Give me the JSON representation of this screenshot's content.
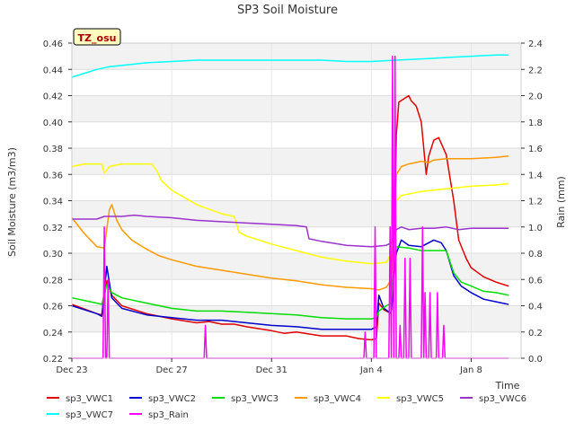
{
  "chart_data": {
    "type": "line",
    "title": "SP3 Soil Moisture",
    "badge": "TZ_osu",
    "xlabel": "Time",
    "ylabel": "Soil Moisture (m3/m3)",
    "y2label": "Rain (mm)",
    "x_range_days": [
      0,
      18.0
    ],
    "xticks": [
      {
        "day": 0,
        "label": "Dec 23"
      },
      {
        "day": 4,
        "label": "Dec 27"
      },
      {
        "day": 8,
        "label": "Dec 31"
      },
      {
        "day": 12,
        "label": "Jan 4"
      },
      {
        "day": 16,
        "label": "Jan 8"
      }
    ],
    "ylim": [
      0.22,
      0.46
    ],
    "yticks": [
      "0.22",
      "0.24",
      "0.26",
      "0.28",
      "0.30",
      "0.32",
      "0.34",
      "0.36",
      "0.38",
      "0.40",
      "0.42",
      "0.44",
      "0.46"
    ],
    "y2lim": [
      0.0,
      2.4
    ],
    "y2ticks": [
      "0.0",
      "0.2",
      "0.4",
      "0.6",
      "0.8",
      "1.0",
      "1.2",
      "1.4",
      "1.6",
      "1.8",
      "2.0",
      "2.2",
      "2.4"
    ],
    "grid": true,
    "legend_position": "bottom",
    "series": [
      {
        "name": "sp3_VWC1",
        "color": "#e00000",
        "axis": "left",
        "points": [
          [
            0.0,
            0.261
          ],
          [
            1.0,
            0.254
          ],
          [
            1.2,
            0.253
          ],
          [
            1.4,
            0.279
          ],
          [
            1.6,
            0.268
          ],
          [
            2.0,
            0.26
          ],
          [
            3.0,
            0.254
          ],
          [
            4.0,
            0.25
          ],
          [
            5.0,
            0.247
          ],
          [
            5.5,
            0.248
          ],
          [
            6.0,
            0.246
          ],
          [
            6.5,
            0.246
          ],
          [
            7.0,
            0.244
          ],
          [
            8.0,
            0.241
          ],
          [
            8.5,
            0.239
          ],
          [
            9.0,
            0.24
          ],
          [
            10.0,
            0.237
          ],
          [
            11.0,
            0.237
          ],
          [
            11.5,
            0.235
          ],
          [
            12.0,
            0.234
          ],
          [
            12.2,
            0.235
          ],
          [
            12.3,
            0.262
          ],
          [
            12.5,
            0.257
          ],
          [
            12.8,
            0.254
          ],
          [
            12.9,
            0.29
          ],
          [
            13.0,
            0.39
          ],
          [
            13.1,
            0.415
          ],
          [
            13.5,
            0.42
          ],
          [
            13.6,
            0.416
          ],
          [
            13.8,
            0.412
          ],
          [
            14.0,
            0.4
          ],
          [
            14.2,
            0.36
          ],
          [
            14.3,
            0.374
          ],
          [
            14.5,
            0.386
          ],
          [
            14.7,
            0.388
          ],
          [
            15.0,
            0.375
          ],
          [
            15.3,
            0.34
          ],
          [
            15.5,
            0.31
          ],
          [
            15.8,
            0.296
          ],
          [
            16.0,
            0.289
          ],
          [
            16.5,
            0.282
          ],
          [
            17.0,
            0.278
          ],
          [
            17.5,
            0.275
          ]
        ]
      },
      {
        "name": "sp3_VWC2",
        "color": "#0000cc",
        "axis": "left",
        "points": [
          [
            0.0,
            0.26
          ],
          [
            1.0,
            0.254
          ],
          [
            1.2,
            0.252
          ],
          [
            1.4,
            0.29
          ],
          [
            1.6,
            0.266
          ],
          [
            2.0,
            0.258
          ],
          [
            3.0,
            0.253
          ],
          [
            4.0,
            0.251
          ],
          [
            5.0,
            0.249
          ],
          [
            6.0,
            0.249
          ],
          [
            7.0,
            0.247
          ],
          [
            8.0,
            0.245
          ],
          [
            9.0,
            0.244
          ],
          [
            10.0,
            0.242
          ],
          [
            11.0,
            0.242
          ],
          [
            12.0,
            0.242
          ],
          [
            12.2,
            0.244
          ],
          [
            12.3,
            0.268
          ],
          [
            12.5,
            0.258
          ],
          [
            12.8,
            0.254
          ],
          [
            12.9,
            0.28
          ],
          [
            13.0,
            0.3
          ],
          [
            13.2,
            0.31
          ],
          [
            13.5,
            0.306
          ],
          [
            14.0,
            0.305
          ],
          [
            14.5,
            0.31
          ],
          [
            14.8,
            0.308
          ],
          [
            15.0,
            0.302
          ],
          [
            15.3,
            0.283
          ],
          [
            15.6,
            0.275
          ],
          [
            16.0,
            0.27
          ],
          [
            16.5,
            0.265
          ],
          [
            17.0,
            0.263
          ],
          [
            17.5,
            0.261
          ]
        ]
      },
      {
        "name": "sp3_VWC3",
        "color": "#00dd00",
        "axis": "left",
        "points": [
          [
            0.0,
            0.266
          ],
          [
            1.0,
            0.262
          ],
          [
            1.2,
            0.261
          ],
          [
            1.4,
            0.276
          ],
          [
            1.6,
            0.27
          ],
          [
            2.0,
            0.266
          ],
          [
            3.0,
            0.262
          ],
          [
            4.0,
            0.258
          ],
          [
            5.0,
            0.256
          ],
          [
            6.0,
            0.256
          ],
          [
            7.0,
            0.255
          ],
          [
            8.0,
            0.254
          ],
          [
            9.0,
            0.253
          ],
          [
            10.0,
            0.251
          ],
          [
            11.0,
            0.25
          ],
          [
            12.0,
            0.25
          ],
          [
            12.2,
            0.251
          ],
          [
            12.3,
            0.256
          ],
          [
            12.6,
            0.26
          ],
          [
            12.8,
            0.262
          ],
          [
            12.9,
            0.29
          ],
          [
            13.0,
            0.305
          ],
          [
            13.5,
            0.304
          ],
          [
            14.0,
            0.302
          ],
          [
            14.5,
            0.302
          ],
          [
            15.0,
            0.302
          ],
          [
            15.3,
            0.285
          ],
          [
            15.6,
            0.278
          ],
          [
            16.0,
            0.275
          ],
          [
            16.5,
            0.271
          ],
          [
            17.0,
            0.27
          ],
          [
            17.5,
            0.268
          ]
        ]
      },
      {
        "name": "sp3_VWC4",
        "color": "#ff9900",
        "axis": "left",
        "points": [
          [
            0.0,
            0.327
          ],
          [
            0.5,
            0.315
          ],
          [
            1.0,
            0.305
          ],
          [
            1.3,
            0.304
          ],
          [
            1.5,
            0.333
          ],
          [
            1.6,
            0.337
          ],
          [
            1.8,
            0.325
          ],
          [
            2.0,
            0.318
          ],
          [
            2.4,
            0.31
          ],
          [
            3.0,
            0.303
          ],
          [
            3.5,
            0.298
          ],
          [
            4.0,
            0.295
          ],
          [
            5.0,
            0.29
          ],
          [
            6.0,
            0.287
          ],
          [
            7.0,
            0.284
          ],
          [
            8.0,
            0.281
          ],
          [
            9.0,
            0.279
          ],
          [
            10.0,
            0.276
          ],
          [
            11.0,
            0.274
          ],
          [
            12.0,
            0.273
          ],
          [
            12.3,
            0.272
          ],
          [
            12.6,
            0.274
          ],
          [
            12.8,
            0.28
          ],
          [
            13.0,
            0.36
          ],
          [
            13.2,
            0.366
          ],
          [
            13.5,
            0.368
          ],
          [
            14.0,
            0.37
          ],
          [
            14.3,
            0.369
          ],
          [
            14.5,
            0.371
          ],
          [
            15.0,
            0.372
          ],
          [
            16.0,
            0.372
          ],
          [
            17.0,
            0.373
          ],
          [
            17.5,
            0.374
          ]
        ]
      },
      {
        "name": "sp3_VWC5",
        "color": "#ffff00",
        "axis": "left",
        "points": [
          [
            0.0,
            0.366
          ],
          [
            0.5,
            0.368
          ],
          [
            1.2,
            0.368
          ],
          [
            1.3,
            0.361
          ],
          [
            1.5,
            0.366
          ],
          [
            2.0,
            0.368
          ],
          [
            3.2,
            0.368
          ],
          [
            3.4,
            0.363
          ],
          [
            3.6,
            0.355
          ],
          [
            4.0,
            0.348
          ],
          [
            5.0,
            0.337
          ],
          [
            6.0,
            0.33
          ],
          [
            6.5,
            0.328
          ],
          [
            6.7,
            0.316
          ],
          [
            7.0,
            0.313
          ],
          [
            8.0,
            0.307
          ],
          [
            9.0,
            0.302
          ],
          [
            10.0,
            0.297
          ],
          [
            11.0,
            0.294
          ],
          [
            12.0,
            0.292
          ],
          [
            12.6,
            0.293
          ],
          [
            12.8,
            0.3
          ],
          [
            13.0,
            0.34
          ],
          [
            13.2,
            0.344
          ],
          [
            14.0,
            0.347
          ],
          [
            15.0,
            0.349
          ],
          [
            16.0,
            0.351
          ],
          [
            17.0,
            0.352
          ],
          [
            17.5,
            0.353
          ]
        ]
      },
      {
        "name": "sp3_VWC6",
        "color": "#9933cc",
        "axis": "left",
        "points": [
          [
            0.0,
            0.326
          ],
          [
            1.0,
            0.326
          ],
          [
            1.3,
            0.328
          ],
          [
            2.0,
            0.328
          ],
          [
            2.5,
            0.329
          ],
          [
            3.0,
            0.328
          ],
          [
            4.0,
            0.327
          ],
          [
            5.0,
            0.325
          ],
          [
            6.0,
            0.324
          ],
          [
            7.0,
            0.323
          ],
          [
            8.0,
            0.322
          ],
          [
            9.0,
            0.321
          ],
          [
            9.4,
            0.32
          ],
          [
            9.5,
            0.311
          ],
          [
            10.0,
            0.309
          ],
          [
            11.0,
            0.306
          ],
          [
            12.0,
            0.305
          ],
          [
            12.6,
            0.306
          ],
          [
            12.8,
            0.308
          ],
          [
            13.0,
            0.318
          ],
          [
            13.2,
            0.32
          ],
          [
            13.5,
            0.318
          ],
          [
            14.0,
            0.319
          ],
          [
            14.5,
            0.319
          ],
          [
            15.0,
            0.32
          ],
          [
            15.5,
            0.318
          ],
          [
            16.0,
            0.319
          ],
          [
            17.0,
            0.319
          ],
          [
            17.5,
            0.319
          ]
        ]
      },
      {
        "name": "sp3_VWC7",
        "color": "#00ffff",
        "axis": "left",
        "points": [
          [
            0.0,
            0.434
          ],
          [
            0.5,
            0.437
          ],
          [
            1.0,
            0.44
          ],
          [
            1.5,
            0.442
          ],
          [
            2.0,
            0.443
          ],
          [
            3.0,
            0.445
          ],
          [
            4.0,
            0.446
          ],
          [
            5.0,
            0.447
          ],
          [
            6.0,
            0.447
          ],
          [
            7.0,
            0.447
          ],
          [
            8.0,
            0.447
          ],
          [
            9.0,
            0.447
          ],
          [
            10.0,
            0.447
          ],
          [
            11.0,
            0.446
          ],
          [
            12.0,
            0.446
          ],
          [
            13.0,
            0.447
          ],
          [
            14.0,
            0.448
          ],
          [
            15.0,
            0.449
          ],
          [
            16.0,
            0.45
          ],
          [
            17.0,
            0.451
          ],
          [
            17.5,
            0.451
          ]
        ]
      },
      {
        "name": "sp3_Rain",
        "color": "#ff00ff",
        "axis": "right",
        "points": [
          [
            0.0,
            0.0
          ],
          [
            1.25,
            0.0
          ],
          [
            1.3,
            1.0
          ],
          [
            1.35,
            0.0
          ],
          [
            1.4,
            0.0
          ],
          [
            1.45,
            0.6
          ],
          [
            1.5,
            0.0
          ],
          [
            5.3,
            0.0
          ],
          [
            5.35,
            0.25
          ],
          [
            5.4,
            0.0
          ],
          [
            11.7,
            0.0
          ],
          [
            11.75,
            0.2
          ],
          [
            11.8,
            0.0
          ],
          [
            12.1,
            0.0
          ],
          [
            12.15,
            1.0
          ],
          [
            12.2,
            0.0
          ],
          [
            12.7,
            0.0
          ],
          [
            12.75,
            1.0
          ],
          [
            12.8,
            0.0
          ],
          [
            12.85,
            2.3
          ],
          [
            12.9,
            0.0
          ],
          [
            12.95,
            2.3
          ],
          [
            13.0,
            0.0
          ],
          [
            13.1,
            0.0
          ],
          [
            13.15,
            0.25
          ],
          [
            13.2,
            0.0
          ],
          [
            13.3,
            0.0
          ],
          [
            13.35,
            0.76
          ],
          [
            13.4,
            0.0
          ],
          [
            13.5,
            0.0
          ],
          [
            13.55,
            0.76
          ],
          [
            13.6,
            0.0
          ],
          [
            14.0,
            0.0
          ],
          [
            14.05,
            1.0
          ],
          [
            14.1,
            0.0
          ],
          [
            14.15,
            0.5
          ],
          [
            14.2,
            0.0
          ],
          [
            14.3,
            0.0
          ],
          [
            14.35,
            0.5
          ],
          [
            14.4,
            0.0
          ],
          [
            14.6,
            0.0
          ],
          [
            14.65,
            0.5
          ],
          [
            14.7,
            0.0
          ],
          [
            14.85,
            0.0
          ],
          [
            14.9,
            0.25
          ],
          [
            14.95,
            0.0
          ],
          [
            17.5,
            0.0
          ]
        ]
      }
    ]
  }
}
